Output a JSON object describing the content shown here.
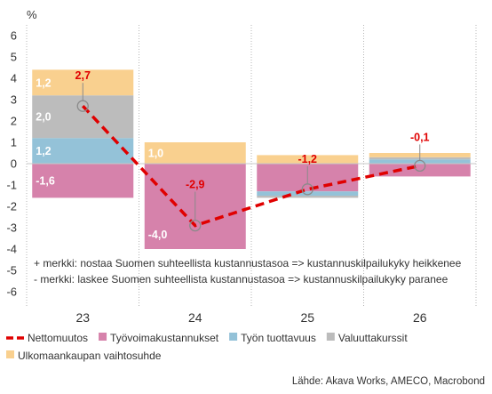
{
  "chart_data": {
    "type": "bar",
    "stacked": true,
    "unit_label": "%",
    "ylim": [
      -6,
      6
    ],
    "yticks": [
      -6,
      -5,
      -4,
      -3,
      -2,
      -1,
      0,
      1,
      2,
      3,
      4,
      5,
      6
    ],
    "categories": [
      "23",
      "24",
      "25",
      "26"
    ],
    "series": [
      {
        "name": "Työvoimakustannukset",
        "color": "#d682ab",
        "values": [
          -1.6,
          -4.0,
          -1.3,
          -0.6
        ]
      },
      {
        "name": "Työn tuottavuus",
        "color": "#94c2d8",
        "values": [
          1.2,
          0.0,
          -0.2,
          0.2
        ]
      },
      {
        "name": "Valuuttakurssit",
        "color": "#bcbcbc",
        "values": [
          2.0,
          0.0,
          -0.1,
          0.1
        ]
      },
      {
        "name": "Ulkomaankaupan vaihtosuhde",
        "color": "#f9d08f",
        "values": [
          1.2,
          1.0,
          0.4,
          0.2
        ]
      }
    ],
    "segment_labels": [
      {
        "category": "23",
        "series": "Ulkomaankaupan vaihtosuhde",
        "text": "1,2"
      },
      {
        "category": "23",
        "series": "Valuuttakurssit",
        "text": "2,0"
      },
      {
        "category": "23",
        "series": "Työn tuottavuus",
        "text": "1,2"
      },
      {
        "category": "23",
        "series": "Työvoimakustannukset",
        "text": "-1,6"
      },
      {
        "category": "24",
        "series": "Ulkomaankaupan vaihtosuhde",
        "text": "1,0"
      },
      {
        "category": "24",
        "series": "Työvoimakustannukset",
        "text": "-4,0"
      }
    ],
    "net_line": {
      "name": "Nettomuutos",
      "color": "#e00000",
      "values": [
        2.7,
        -2.9,
        -1.2,
        -0.1
      ],
      "labels": [
        "2,7",
        "-2,9",
        "-1,2",
        "-0,1"
      ]
    },
    "notes": [
      "+ merkki: nostaa Suomen suhteellista kustannustasoa => kustannuskilpailukyky heikkenee",
      "- merkki: laskee Suomen suhteellista kustannustasoa => kustannuskilpailukyky paranee"
    ],
    "legend_order": [
      "Nettomuutos",
      "Työvoimakustannukset",
      "Työn tuottavuus",
      "Valuuttakurssit",
      "Ulkomaankaupan vaihtosuhde"
    ],
    "legend_position": "bottom",
    "grid": "vertical-dotted",
    "source": "Lähde: Akava Works, AMECO, Macrobond"
  }
}
